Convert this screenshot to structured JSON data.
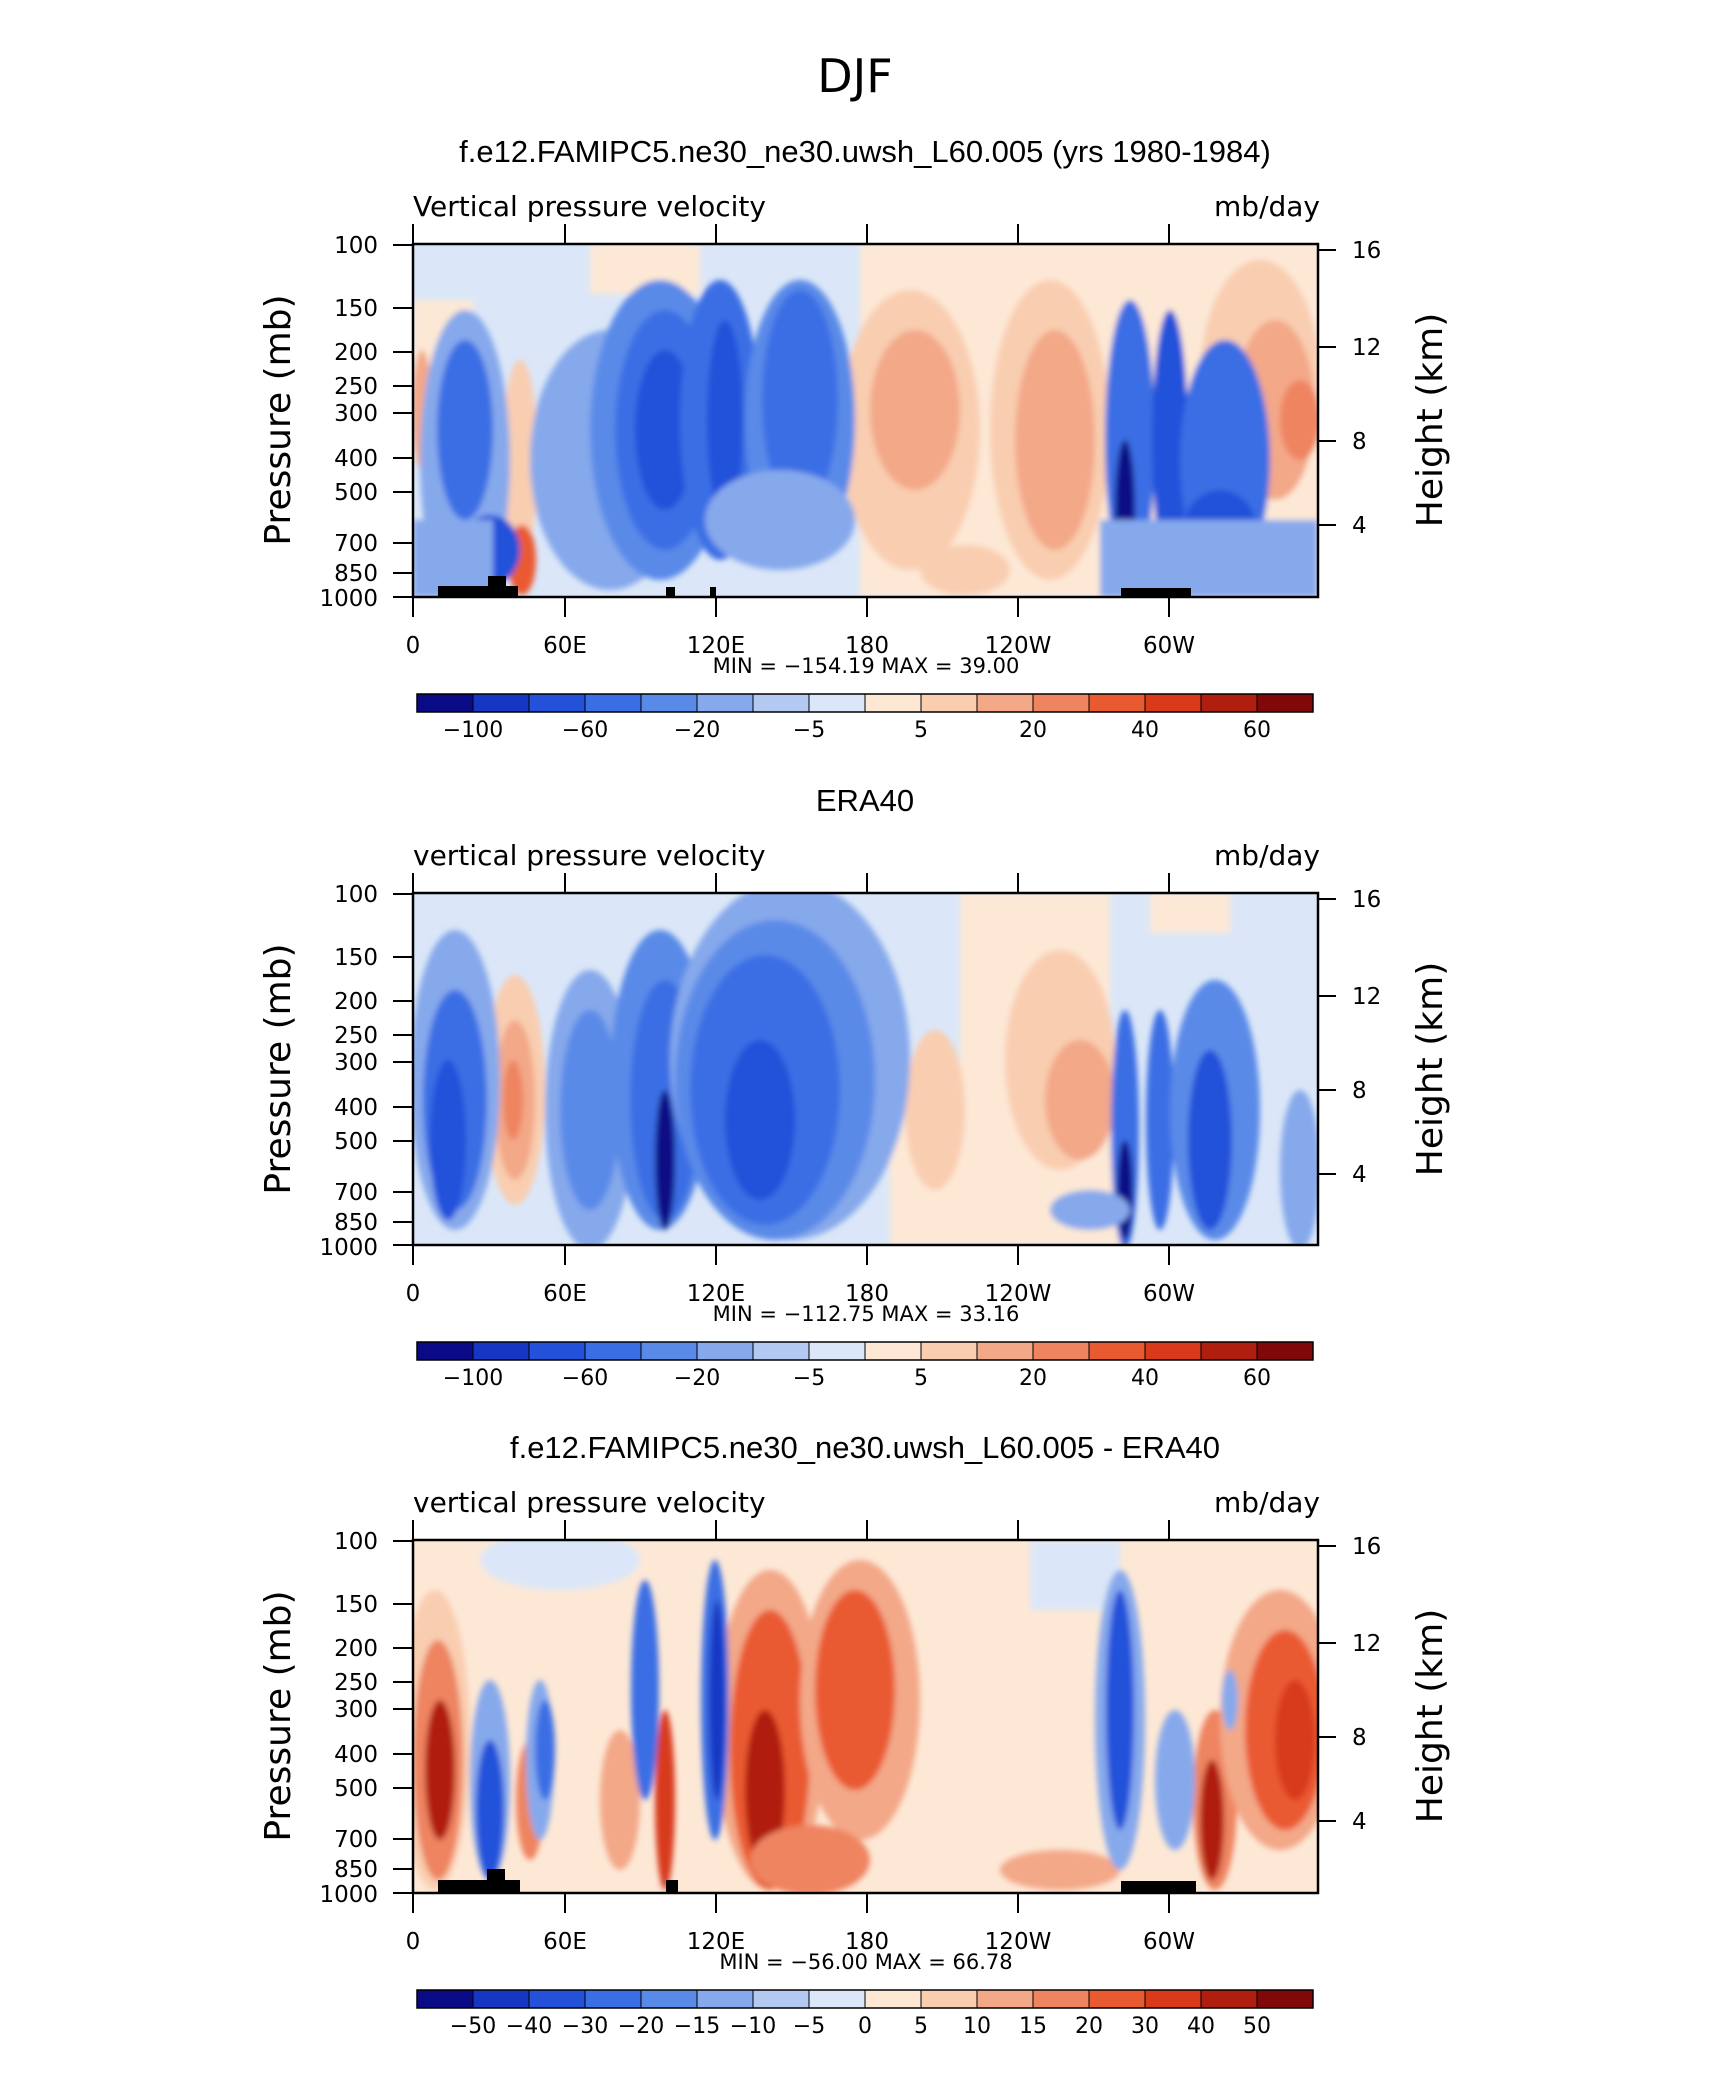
{
  "figure_title": "DJF",
  "chart_data": [
    {
      "type": "heatmap",
      "title": "f.e12.FAMIPC5.ne30_ne30.uwsh_L60.005 (yrs 1980-1984)",
      "subtitle_left": "Vertical pressure velocity",
      "subtitle_right": "mb/day",
      "ylabel": "Pressure (mb)",
      "ylabel_right": "Height (km)",
      "x_ticks": [
        "0",
        "60E",
        "120E",
        "180",
        "120W",
        "60W"
      ],
      "y_ticks": [
        "100",
        "150",
        "200",
        "250",
        "300",
        "400",
        "500",
        "700",
        "850",
        "1000"
      ],
      "y2_ticks": [
        "16",
        "12",
        "8",
        "4"
      ],
      "stats": "MIN = −154.19   MAX =   39.00",
      "colorbar_labels": [
        "−100",
        "−60",
        "−20",
        "−5",
        "5",
        "20",
        "40",
        "60"
      ],
      "min": -154.19,
      "max": 39.0,
      "grid": false
    },
    {
      "type": "heatmap",
      "title": "ERA40",
      "subtitle_left": "vertical pressure velocity",
      "subtitle_right": "mb/day",
      "ylabel": "Pressure (mb)",
      "ylabel_right": "Height (km)",
      "x_ticks": [
        "0",
        "60E",
        "120E",
        "180",
        "120W",
        "60W"
      ],
      "y_ticks": [
        "100",
        "150",
        "200",
        "250",
        "300",
        "400",
        "500",
        "700",
        "850",
        "1000"
      ],
      "y2_ticks": [
        "16",
        "12",
        "8",
        "4"
      ],
      "stats": "MIN = −112.75   MAX =   33.16",
      "colorbar_labels": [
        "−100",
        "−60",
        "−20",
        "−5",
        "5",
        "20",
        "40",
        "60"
      ],
      "min": -112.75,
      "max": 33.16,
      "grid": false
    },
    {
      "type": "heatmap",
      "title": "f.e12.FAMIPC5.ne30_ne30.uwsh_L60.005 - ERA40",
      "subtitle_left": "vertical pressure velocity",
      "subtitle_right": "mb/day",
      "ylabel": "Pressure (mb)",
      "ylabel_right": "Height (km)",
      "x_ticks": [
        "0",
        "60E",
        "120E",
        "180",
        "120W",
        "60W"
      ],
      "y_ticks": [
        "100",
        "150",
        "200",
        "250",
        "300",
        "400",
        "500",
        "700",
        "850",
        "1000"
      ],
      "y2_ticks": [
        "16",
        "12",
        "8",
        "4"
      ],
      "stats": "MIN = −56.00   MAX =   66.78",
      "colorbar_labels": [
        "−50",
        "−40",
        "−30",
        "−20",
        "−15",
        "−10",
        "−5",
        "0",
        "5",
        "10",
        "15",
        "20",
        "30",
        "40",
        "50"
      ],
      "min": -56.0,
      "max": 66.78,
      "grid": false
    }
  ],
  "colorbar_colors": [
    "#0a0a86",
    "#1637c4",
    "#2451da",
    "#3a6ee4",
    "#5a8ae8",
    "#86a9ec",
    "#b3c9f2",
    "#dbe7f8",
    "#fde8d6",
    "#f9cdb0",
    "#f3a888",
    "#ee8460",
    "#ea5a30",
    "#d83a1a",
    "#b01e10",
    "#800808"
  ]
}
